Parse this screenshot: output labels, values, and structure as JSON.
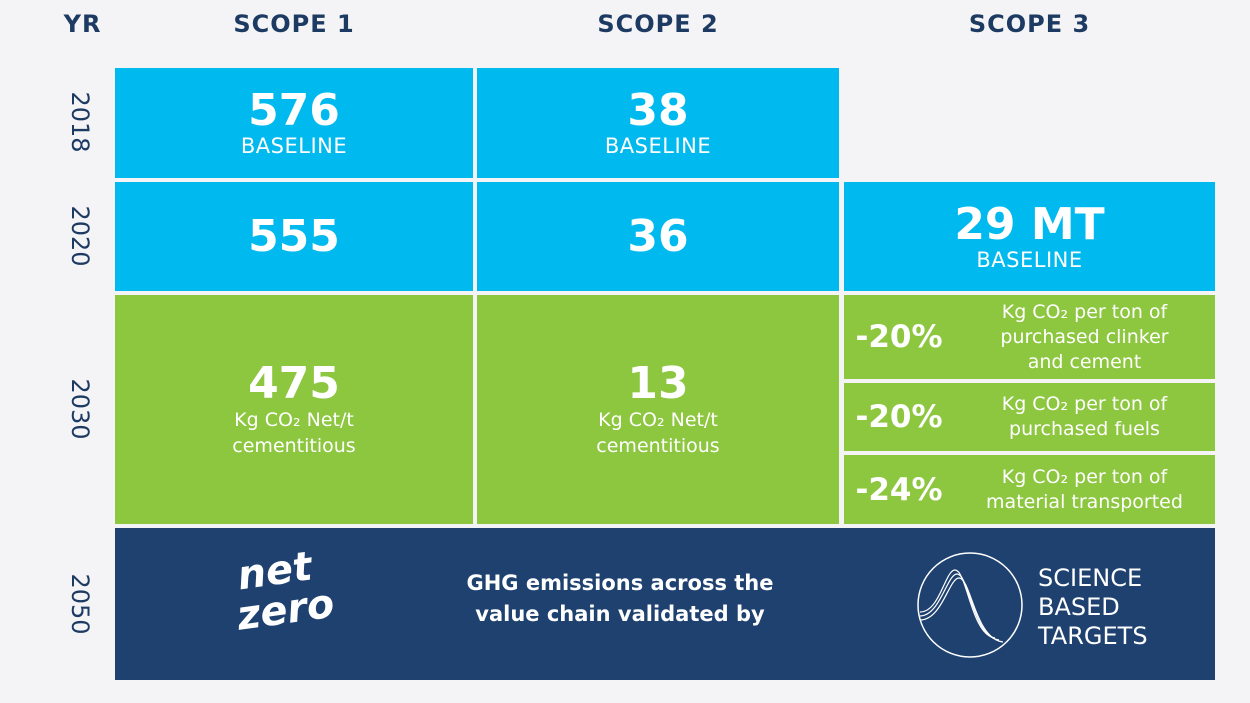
{
  "headers": {
    "yr": "YR",
    "scope1": "SCOPE 1",
    "scope2": "SCOPE 2",
    "scope3": "SCOPE 3"
  },
  "years": [
    "2018",
    "2020",
    "2030",
    "2050"
  ],
  "row2018": {
    "scope1": {
      "value": "576",
      "label": "BASELINE"
    },
    "scope2": {
      "value": "38",
      "label": "BASELINE"
    }
  },
  "row2020": {
    "scope1": {
      "value": "555"
    },
    "scope2": {
      "value": "36"
    },
    "scope3": {
      "value": "29 MT",
      "label": "BASELINE"
    }
  },
  "row2030": {
    "scope1": {
      "value": "475",
      "line1": "Kg CO₂ Net/t",
      "line2": "cementitious"
    },
    "scope2": {
      "value": "13",
      "line1": "Kg CO₂ Net/t",
      "line2": "cementitious"
    },
    "scope3": [
      {
        "pct": "-20%",
        "line1": "Kg CO₂ per ton of",
        "line2": "purchased clinker",
        "line3": "and cement"
      },
      {
        "pct": "-20%",
        "line1": "Kg CO₂ per ton of",
        "line2": "purchased fuels"
      },
      {
        "pct": "-24%",
        "line1": "Kg CO₂ per ton of",
        "line2": "material transported"
      }
    ]
  },
  "row2050": {
    "logo_net": "net",
    "logo_zero": "zero",
    "text1": "GHG emissions across the",
    "text2": "value chain validated by",
    "sbt1": "SCIENCE",
    "sbt2": "BASED",
    "sbt3": "TARGETS"
  },
  "colors": {
    "cyan": "#00b9ee",
    "green": "#8dc63f",
    "navy": "#1e4170"
  }
}
